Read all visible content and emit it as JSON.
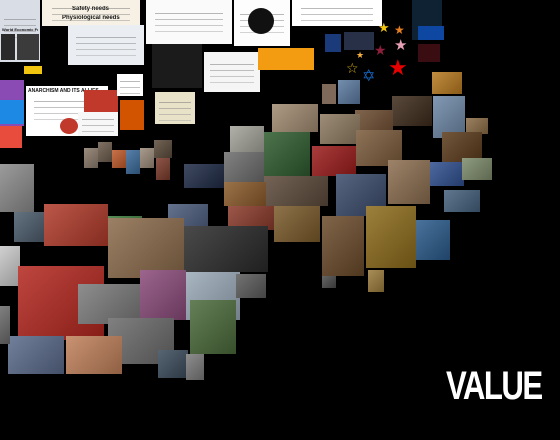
{
  "label": "VALUE",
  "doc_captions": {
    "anarchism": "ANARCHISM AND ITS ALLIES",
    "economic": "World Economic Forum",
    "maslow_top": "Safety needs",
    "maslow_bottom": "Physiological needs"
  },
  "symbol_glyphs": {
    "star": "★",
    "star_of_david": "✡",
    "pentagram": "☆"
  },
  "colors": {
    "background": "#000000",
    "label": "#ffffff"
  }
}
